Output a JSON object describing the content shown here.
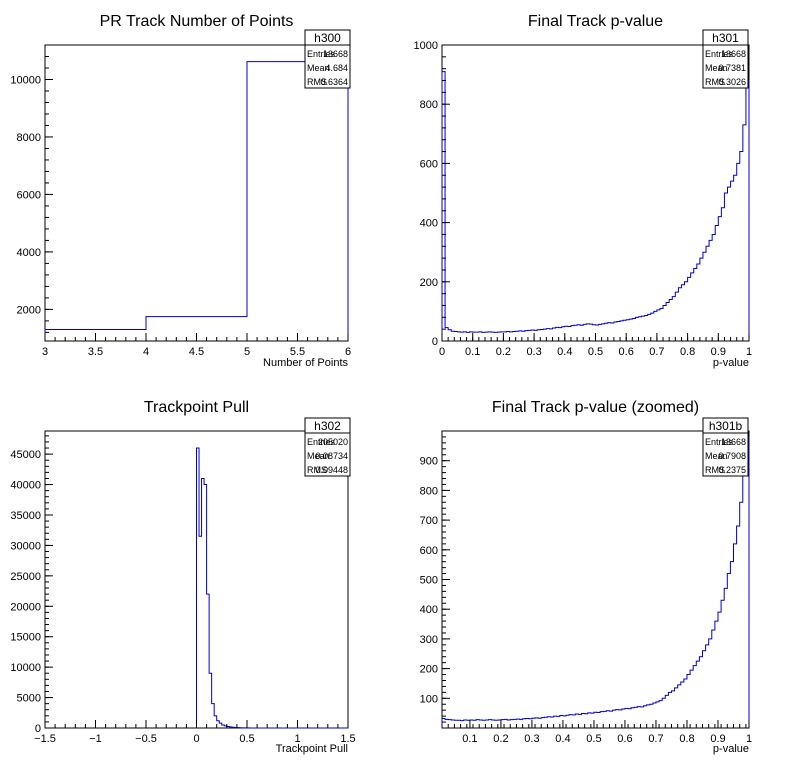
{
  "chart_data": [
    {
      "type": "histogram",
      "title": "PR Track Number of Points",
      "xlabel": "Number of Points",
      "ylabel": "",
      "xlim": [
        3,
        6
      ],
      "ylim": [
        900,
        11200
      ],
      "xticks": [
        3,
        3.5,
        4,
        4.5,
        5,
        5.5,
        6
      ],
      "xtick_labels": [
        "3",
        "3.5",
        "4",
        "4.5",
        "5",
        "5.5",
        "6"
      ],
      "yticks": [
        2000,
        4000,
        6000,
        8000,
        10000
      ],
      "ytick_labels": [
        "2000",
        "4000",
        "6000",
        "8000",
        "10000"
      ],
      "bin_edges": [
        3,
        4,
        5,
        6
      ],
      "counts": [
        1300,
        1750,
        10620
      ],
      "stats": {
        "name": "h300",
        "rows": [
          [
            "Entries",
            "13668"
          ],
          [
            "Mean",
            "4.684"
          ],
          [
            "RMS",
            "0.6364"
          ]
        ]
      },
      "line_color": "#0000cc"
    },
    {
      "type": "histogram",
      "title": "Final Track p-value",
      "xlabel": "p-value",
      "ylabel": "",
      "xlim": [
        0,
        1
      ],
      "ylim": [
        0,
        1000
      ],
      "xticks": [
        0,
        0.1,
        0.2,
        0.3,
        0.4,
        0.5,
        0.6,
        0.7,
        0.8,
        0.9,
        1
      ],
      "xtick_labels": [
        "0",
        "0.1",
        "0.2",
        "0.3",
        "0.4",
        "0.5",
        "0.6",
        "0.7",
        "0.8",
        "0.9",
        "1"
      ],
      "yticks": [
        0,
        200,
        400,
        600,
        800,
        1000
      ],
      "ytick_labels": [
        "0",
        "200",
        "400",
        "600",
        "800",
        "1000"
      ],
      "bin_edges_range": [
        0,
        1,
        100
      ],
      "counts": [
        910,
        45,
        38,
        33,
        32,
        31,
        30,
        31,
        29,
        31,
        30,
        30,
        31,
        29,
        30,
        31,
        30,
        29,
        30,
        31,
        31,
        32,
        31,
        32,
        33,
        34,
        33,
        35,
        36,
        37,
        36,
        38,
        39,
        40,
        42,
        41,
        44,
        46,
        45,
        48,
        50,
        49,
        52,
        53,
        55,
        53,
        56,
        58,
        57,
        55,
        54,
        56,
        58,
        60,
        62,
        61,
        64,
        66,
        68,
        70,
        72,
        74,
        76,
        80,
        82,
        84,
        86,
        90,
        94,
        100,
        105,
        110,
        120,
        130,
        140,
        150,
        165,
        180,
        190,
        200,
        215,
        230,
        245,
        260,
        280,
        300,
        320,
        340,
        360,
        390,
        420,
        450,
        500,
        520,
        540,
        560,
        600,
        640,
        730,
        880
      ],
      "stats": {
        "name": "h301",
        "rows": [
          [
            "Entries",
            "13668"
          ],
          [
            "Mean",
            "0.7381"
          ],
          [
            "RMS",
            "0.3026"
          ]
        ]
      },
      "line_color": "#0000cc"
    },
    {
      "type": "histogram",
      "title": "Trackpoint Pull",
      "xlabel": "Trackpoint Pull",
      "ylabel": "",
      "xlim": [
        -1.5,
        1.5
      ],
      "ylim": [
        0,
        48800
      ],
      "xticks": [
        -1.5,
        -1,
        -0.5,
        0,
        0.5,
        1,
        1.5
      ],
      "xtick_labels": [
        "−1.5",
        "−1",
        "−0.5",
        "0",
        "0.5",
        "1",
        "1.5"
      ],
      "yticks": [
        0,
        5000,
        10000,
        15000,
        20000,
        25000,
        30000,
        35000,
        40000,
        45000
      ],
      "ytick_labels": [
        "0",
        "5000",
        "10000",
        "15000",
        "20000",
        "25000",
        "30000",
        "35000",
        "40000",
        "45000"
      ],
      "bin_edges_range": [
        0,
        1.5,
        60
      ],
      "counts": [
        46000,
        31500,
        41000,
        40000,
        22000,
        9000,
        4000,
        2000,
        1200,
        800,
        500,
        350,
        250,
        180,
        120,
        80,
        60,
        40,
        30,
        20,
        15,
        10,
        8,
        6,
        4,
        3,
        2,
        1,
        1,
        1,
        0,
        0,
        0,
        0,
        0,
        0,
        0,
        0,
        0,
        0,
        0,
        0,
        0,
        0,
        0,
        0,
        0,
        0,
        0,
        0,
        0,
        0,
        0,
        0,
        0,
        0,
        0,
        0,
        0,
        0
      ],
      "stats": {
        "name": "h302",
        "rows": [
          [
            "Entries",
            "205020"
          ],
          [
            "Mean",
            "0.08734"
          ],
          [
            "RMS",
            "0.09448"
          ]
        ]
      },
      "line_color": "#0000cc"
    },
    {
      "type": "histogram",
      "title": "Final Track p-value (zoomed)",
      "xlabel": "p-value",
      "ylabel": "",
      "xlim": [
        0.01,
        1
      ],
      "ylim": [
        0,
        1000
      ],
      "xticks": [
        0.1,
        0.2,
        0.3,
        0.4,
        0.5,
        0.6,
        0.7,
        0.8,
        0.9,
        1
      ],
      "xtick_labels": [
        "0.1",
        "0.2",
        "0.3",
        "0.4",
        "0.5",
        "0.6",
        "0.7",
        "0.8",
        "0.9",
        "1"
      ],
      "yticks": [
        100,
        200,
        300,
        400,
        500,
        600,
        700,
        800,
        900
      ],
      "ytick_labels": [
        "100",
        "200",
        "300",
        "400",
        "500",
        "600",
        "700",
        "800",
        "900"
      ],
      "bin_edges_range": [
        0.01,
        1,
        99
      ],
      "counts": [
        32,
        29,
        28,
        27,
        26,
        26,
        25,
        27,
        26,
        27,
        26,
        28,
        27,
        26,
        27,
        28,
        27,
        26,
        27,
        28,
        29,
        27,
        28,
        29,
        30,
        29,
        31,
        32,
        31,
        33,
        34,
        33,
        35,
        36,
        38,
        37,
        40,
        39,
        42,
        41,
        43,
        45,
        44,
        47,
        46,
        49,
        48,
        51,
        50,
        53,
        52,
        55,
        56,
        58,
        57,
        60,
        62,
        61,
        64,
        66,
        65,
        68,
        70,
        72,
        71,
        75,
        78,
        80,
        84,
        88,
        92,
        100,
        110,
        120,
        125,
        135,
        145,
        155,
        165,
        180,
        195,
        210,
        225,
        240,
        260,
        280,
        300,
        330,
        360,
        390,
        430,
        470,
        520,
        560,
        620,
        680,
        760,
        850,
        980
      ],
      "stats": {
        "name": "h301b",
        "rows": [
          [
            "Entries",
            "13668"
          ],
          [
            "Mean",
            "0.7908"
          ],
          [
            "RMS",
            "0.2375"
          ]
        ]
      },
      "line_color": "#0000cc"
    }
  ]
}
